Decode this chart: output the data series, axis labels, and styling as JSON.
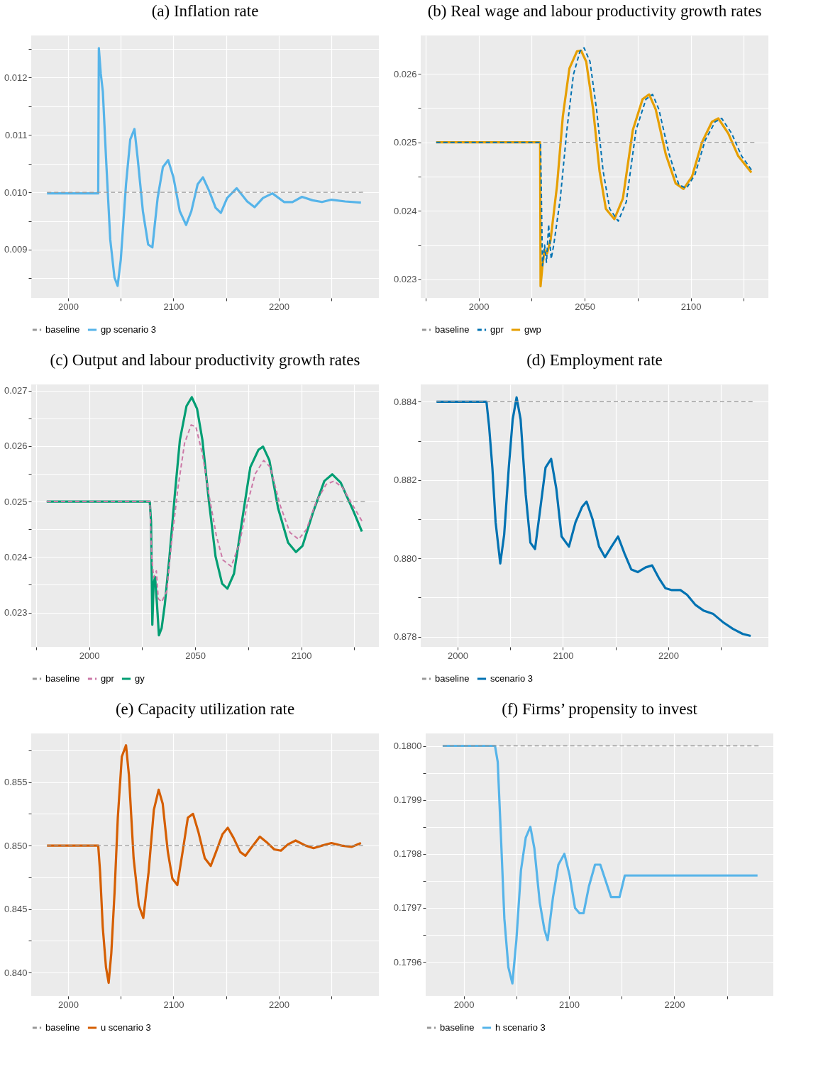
{
  "chart_data": [
    {
      "type": "line",
      "title": "(a) Inflation rate",
      "xlim": [
        1965,
        2295
      ],
      "ylim": [
        0.00816,
        0.01273
      ],
      "xticks": [
        2000,
        {
          "value": 2050,
          "label": null
        },
        2100,
        {
          "value": 2150,
          "label": null
        },
        2200,
        {
          "value": 2250,
          "label": null
        }
      ],
      "yticks": [
        {
          "value": 0.0085,
          "label": null
        },
        0.009,
        {
          "value": 0.0095,
          "label": null
        },
        {
          "value": 0.01,
          "label": "0.010"
        },
        {
          "value": 0.0105,
          "label": null
        },
        0.011,
        {
          "value": 0.0115,
          "label": null
        },
        0.012,
        {
          "value": 0.0125,
          "label": null
        }
      ],
      "grid": true,
      "legend": "bottom",
      "series": [
        {
          "name": "baseline",
          "color": "#999999",
          "line_style": "dashed",
          "x": [
            1980,
            2280
          ],
          "values": [
            0.01,
            0.01
          ]
        },
        {
          "name": "gp scenario 3",
          "color": "#56b4e9",
          "line_style": "solid",
          "x": [
            1980,
            2028.6,
            2029.2,
            2031,
            2033,
            2036,
            2040,
            2044,
            2047,
            2050,
            2055,
            2059,
            2063,
            2066,
            2071,
            2076,
            2080,
            2085,
            2090,
            2095,
            2100,
            2106,
            2112,
            2117,
            2123,
            2128,
            2134,
            2140,
            2145,
            2151,
            2160,
            2170,
            2177,
            2185,
            2194,
            2205,
            2213,
            2222,
            2232,
            2241,
            2250,
            2263,
            2278
          ],
          "values": [
            0.00998,
            0.00998,
            0.01251,
            0.01207,
            0.01175,
            0.0106,
            0.00918,
            0.00852,
            0.00837,
            0.00882,
            0.01014,
            0.01092,
            0.0111,
            0.0106,
            0.00967,
            0.00909,
            0.00904,
            0.0099,
            0.01044,
            0.01056,
            0.01026,
            0.00967,
            0.00943,
            0.00967,
            0.01014,
            0.01026,
            0.01002,
            0.00973,
            0.00964,
            0.0099,
            0.01007,
            0.00984,
            0.00974,
            0.0099,
            0.00998,
            0.00983,
            0.00983,
            0.00992,
            0.00986,
            0.00983,
            0.00987,
            0.00984,
            0.00982
          ]
        }
      ]
    },
    {
      "type": "line",
      "title": "(b) Real wage and labour productivity growth rates",
      "xlim": [
        1972.7,
        2136.6
      ],
      "ylim": [
        0.02273,
        0.02656
      ],
      "xticks": [
        {
          "value": 1975,
          "label": null
        },
        2000,
        {
          "value": 2025,
          "label": null
        },
        2050,
        {
          "value": 2075,
          "label": null
        },
        2100,
        {
          "value": 2125,
          "label": null
        }
      ],
      "yticks": [
        0.023,
        {
          "value": 0.0235,
          "label": null
        },
        0.024,
        {
          "value": 0.0245,
          "label": null
        },
        0.025,
        {
          "value": 0.0255,
          "label": null
        },
        0.026
      ],
      "grid": true,
      "legend": "bottom",
      "series": [
        {
          "name": "baseline",
          "color": "#999999",
          "line_style": "dashed",
          "x": [
            1980,
            2130
          ],
          "values": [
            0.025,
            0.025
          ]
        },
        {
          "name": "gpr",
          "color": "#0072b2",
          "line_style": "dashed",
          "x": [
            1980,
            2029.2,
            2030.1,
            2031.1,
            2032,
            2033,
            2034.2,
            2035.4,
            2038.5,
            2041.6,
            2044.7,
            2047.8,
            2049.7,
            2052.5,
            2055.6,
            2058.7,
            2061.8,
            2065.8,
            2069.6,
            2074.2,
            2078.9,
            2082,
            2085,
            2089.8,
            2094.4,
            2098,
            2102,
            2106.8,
            2111.5,
            2114.6,
            2119.3,
            2124,
            2128.6
          ],
          "values": [
            0.025,
            0.025,
            0.0232,
            0.0235,
            0.02325,
            0.0238,
            0.0233,
            0.0235,
            0.02418,
            0.02518,
            0.02599,
            0.02633,
            0.02638,
            0.02618,
            0.02548,
            0.02458,
            0.02403,
            0.02385,
            0.02413,
            0.02518,
            0.02563,
            0.0257,
            0.02548,
            0.02483,
            0.02438,
            0.02433,
            0.02453,
            0.02503,
            0.0253,
            0.02535,
            0.02513,
            0.0248,
            0.0246
          ]
        },
        {
          "name": "gwp",
          "color": "#e69f00",
          "line_style": "solid",
          "x": [
            1980,
            2029,
            2029.2,
            2030.1,
            2031.1,
            2032.3,
            2033.9,
            2037,
            2039.7,
            2042.8,
            2046.4,
            2048.3,
            2050.7,
            2054,
            2057,
            2060,
            2064,
            2068,
            2072.7,
            2077.3,
            2080.4,
            2083.5,
            2088.2,
            2092.9,
            2096.6,
            2100.6,
            2105.3,
            2110,
            2113,
            2117.7,
            2122.4,
            2128.6
          ],
          "values": [
            0.025,
            0.025,
            0.0229,
            0.0232,
            0.02343,
            0.02338,
            0.02357,
            0.02438,
            0.02538,
            0.02608,
            0.02633,
            0.02634,
            0.02618,
            0.02548,
            0.02458,
            0.02403,
            0.02388,
            0.02418,
            0.02518,
            0.02563,
            0.0257,
            0.02548,
            0.02483,
            0.0244,
            0.02432,
            0.0245,
            0.025,
            0.0253,
            0.02535,
            0.02513,
            0.0248,
            0.02456
          ]
        }
      ]
    },
    {
      "type": "line",
      "title": "(c) Output and labour productivity growth rates",
      "xlim": [
        1972.7,
        2136.6
      ],
      "ylim": [
        0.02238,
        0.02711
      ],
      "xticks": [
        {
          "value": 1975,
          "label": null
        },
        2000,
        {
          "value": 2025,
          "label": null
        },
        2050,
        {
          "value": 2075,
          "label": null
        },
        2100,
        {
          "value": 2125,
          "label": null
        }
      ],
      "yticks": [
        0.023,
        {
          "value": 0.0235,
          "label": null
        },
        0.024,
        {
          "value": 0.0245,
          "label": null
        },
        0.025,
        {
          "value": 0.0255,
          "label": null
        },
        0.026,
        {
          "value": 0.0265,
          "label": null
        },
        0.027
      ],
      "grid": true,
      "legend": "bottom",
      "series": [
        {
          "name": "baseline",
          "color": "#999999",
          "line_style": "dashed",
          "x": [
            1980,
            2130
          ],
          "values": [
            0.025,
            0.025
          ]
        },
        {
          "name": "gpr",
          "color": "#cc79a7",
          "line_style": "dashed",
          "x": [
            1980,
            2028.6,
            2029.5,
            2030.4,
            2031.7,
            2032.6,
            2034.2,
            2036.6,
            2038.8,
            2041.9,
            2045,
            2048.1,
            2050.3,
            2053.4,
            2056.5,
            2060,
            2063,
            2067,
            2071,
            2074.5,
            2078.3,
            2082.3,
            2085.4,
            2090,
            2094.7,
            2098.8,
            2102.5,
            2107.1,
            2111.8,
            2115.5,
            2119.5,
            2124.2,
            2128.6
          ],
          "values": [
            0.025,
            0.025,
            0.02401,
            0.02363,
            0.02375,
            0.02325,
            0.02319,
            0.02338,
            0.02425,
            0.02525,
            0.02605,
            0.02638,
            0.02635,
            0.02586,
            0.02512,
            0.02438,
            0.02395,
            0.02383,
            0.02426,
            0.02494,
            0.0255,
            0.02574,
            0.02562,
            0.02494,
            0.02444,
            0.02432,
            0.0245,
            0.025,
            0.02531,
            0.02537,
            0.02525,
            0.02494,
            0.02465
          ]
        },
        {
          "name": "gy",
          "color": "#009e73",
          "line_style": "solid",
          "x": [
            1980,
            2028.6,
            2029.2,
            2029.8,
            2030.4,
            2031.1,
            2032,
            2032.9,
            2034.2,
            2035.7,
            2037.9,
            2040.4,
            2042.8,
            2045.9,
            2048.4,
            2050.9,
            2053.4,
            2056.5,
            2059.6,
            2062.7,
            2065.2,
            2068.3,
            2072,
            2076,
            2079.8,
            2082,
            2085,
            2089.1,
            2093.8,
            2097.5,
            2100.6,
            2105.6,
            2110.9,
            2114.6,
            2118.6,
            2124.8,
            2128.6
          ],
          "values": [
            0.025,
            0.025,
            0.02463,
            0.02278,
            0.02352,
            0.02364,
            0.02315,
            0.02259,
            0.02272,
            0.02315,
            0.02401,
            0.02512,
            0.02611,
            0.02672,
            0.02688,
            0.02667,
            0.02611,
            0.025,
            0.02401,
            0.02352,
            0.02343,
            0.0237,
            0.02463,
            0.02562,
            0.02593,
            0.02599,
            0.02574,
            0.02488,
            0.02426,
            0.02409,
            0.0242,
            0.02481,
            0.02537,
            0.02549,
            0.02534,
            0.02481,
            0.02446
          ]
        }
      ]
    },
    {
      "type": "line",
      "title": "(d) Employment rate",
      "xlim": [
        1965,
        2295
      ],
      "ylim": [
        0.87774,
        0.88444
      ],
      "xticks": [
        2000,
        {
          "value": 2050,
          "label": null
        },
        2100,
        {
          "value": 2150,
          "label": null
        },
        2200,
        {
          "value": 2250,
          "label": null
        }
      ],
      "yticks": [
        0.878,
        {
          "value": 0.879,
          "label": null
        },
        {
          "value": 0.88,
          "label": "0.880"
        },
        {
          "value": 0.881,
          "label": null
        },
        0.882,
        {
          "value": 0.883,
          "label": null
        },
        0.884
      ],
      "grid": true,
      "legend": "bottom",
      "series": [
        {
          "name": "baseline",
          "color": "#999999",
          "line_style": "dashed",
          "x": [
            1980,
            2280
          ],
          "values": [
            0.884,
            0.884
          ]
        },
        {
          "name": "scenario 3",
          "color": "#0072b2",
          "line_style": "solid",
          "x": [
            1980,
            2027.4,
            2029.9,
            2033,
            2036.1,
            2040.5,
            2044.2,
            2048.6,
            2052.3,
            2056,
            2059.8,
            2064.7,
            2069.1,
            2073.5,
            2078.5,
            2083.5,
            2088.8,
            2093.7,
            2098.7,
            2105.7,
            2111.9,
            2118.1,
            2122.4,
            2128,
            2134.3,
            2139.9,
            2146.1,
            2152.3,
            2158.5,
            2164.8,
            2171,
            2178.5,
            2184.7,
            2191,
            2197.2,
            2203.4,
            2211.5,
            2217.8,
            2225.9,
            2233.3,
            2242.7,
            2252,
            2261.4,
            2270.7,
            2278.2
          ],
          "values": [
            0.884,
            0.884,
            0.88337,
            0.88232,
            0.88092,
            0.87987,
            0.8806,
            0.88232,
            0.88355,
            0.88411,
            0.88355,
            0.88162,
            0.8804,
            0.88024,
            0.88127,
            0.88232,
            0.88254,
            0.88178,
            0.88056,
            0.8803,
            0.88092,
            0.88131,
            0.88145,
            0.88101,
            0.8803,
            0.88003,
            0.8803,
            0.88056,
            0.88012,
            0.87972,
            0.87965,
            0.87977,
            0.87982,
            0.8795,
            0.87924,
            0.87919,
            0.87919,
            0.87907,
            0.87881,
            0.87867,
            0.87858,
            0.87837,
            0.8782,
            0.87807,
            0.87802
          ]
        }
      ]
    },
    {
      "type": "line",
      "title": "(e) Capacity utilization rate",
      "xlim": [
        1965,
        2295
      ],
      "ylim": [
        0.83817,
        0.85883
      ],
      "xticks": [
        2000,
        {
          "value": 2050,
          "label": null
        },
        2100,
        {
          "value": 2150,
          "label": null
        },
        2200,
        {
          "value": 2250,
          "label": null
        }
      ],
      "yticks": [
        {
          "value": 0.84,
          "label": "0.840"
        },
        {
          "value": 0.8425,
          "label": null
        },
        0.845,
        {
          "value": 0.8475,
          "label": null
        },
        {
          "value": 0.85,
          "label": "0.850"
        },
        {
          "value": 0.8525,
          "label": null
        },
        0.855,
        {
          "value": 0.8575,
          "label": null
        }
      ],
      "grid": true,
      "legend": "bottom",
      "series": [
        {
          "name": "baseline",
          "color": "#999999",
          "line_style": "dashed",
          "x": [
            1980,
            2280
          ],
          "values": [
            0.85,
            0.85
          ]
        },
        {
          "name": "u scenario 3",
          "color": "#d55e00",
          "line_style": "solid",
          "x": [
            1980,
            2028.6,
            2030.4,
            2032.9,
            2036,
            2038.5,
            2041,
            2044.1,
            2047.2,
            2051,
            2055,
            2057.8,
            2062.2,
            2067.1,
            2071.4,
            2076.4,
            2081.4,
            2086,
            2089.8,
            2094.7,
            2099,
            2103.7,
            2108.7,
            2113.7,
            2118.6,
            2123.6,
            2129.8,
            2135.4,
            2140.4,
            2146.6,
            2151.6,
            2157.1,
            2163.4,
            2168.3,
            2174.5,
            2182,
            2189.4,
            2195.7,
            2202,
            2208.7,
            2216,
            2225.5,
            2233,
            2241,
            2250,
            2259.6,
            2269,
            2278
          ],
          "values": [
            0.85,
            0.85,
            0.8479,
            0.8436,
            0.8404,
            0.8392,
            0.8415,
            0.8463,
            0.8522,
            0.857,
            0.8579,
            0.8555,
            0.849,
            0.8453,
            0.8443,
            0.8479,
            0.8528,
            0.8544,
            0.8533,
            0.8495,
            0.8474,
            0.8469,
            0.8495,
            0.8522,
            0.8525,
            0.8511,
            0.849,
            0.8484,
            0.8495,
            0.8509,
            0.8514,
            0.8506,
            0.8495,
            0.8492,
            0.8499,
            0.8507,
            0.8502,
            0.8497,
            0.8496,
            0.8501,
            0.8504,
            0.85,
            0.8498,
            0.85,
            0.8502,
            0.85,
            0.8499,
            0.8502
          ]
        }
      ]
    },
    {
      "type": "line",
      "title": "(f) Firms’ propensity to invest",
      "xlim": [
        1963.9,
        2294
      ],
      "ylim": [
        0.179537,
        0.180023
      ],
      "xticks": [
        2000,
        {
          "value": 2050,
          "label": null
        },
        2100,
        {
          "value": 2150,
          "label": null
        },
        2200,
        {
          "value": 2250,
          "label": null
        }
      ],
      "yticks": [
        0.1796,
        {
          "value": 0.17965,
          "label": null
        },
        0.1797,
        {
          "value": 0.17975,
          "label": null
        },
        0.1798,
        {
          "value": 0.17985,
          "label": null
        },
        0.1799,
        {
          "value": 0.17995,
          "label": null
        },
        {
          "value": 0.18,
          "label": "0.1800"
        }
      ],
      "grid": true,
      "legend": "bottom",
      "series": [
        {
          "name": "baseline",
          "color": "#999999",
          "line_style": "dashed",
          "x": [
            1980,
            2280
          ],
          "values": [
            0.18,
            0.18
          ]
        },
        {
          "name": "h scenario 3",
          "color": "#56b4e9",
          "line_style": "solid",
          "x": [
            1980,
            2029.7,
            2032.3,
            2035.4,
            2038.6,
            2042.4,
            2046.2,
            2050,
            2054.4,
            2058.9,
            2063.3,
            2067.1,
            2072.2,
            2076.6,
            2079.7,
            2084.8,
            2089.9,
            2095.6,
            2100.6,
            2105.7,
            2110,
            2113.8,
            2118.9,
            2124.7,
            2129.7,
            2134.8,
            2139.9,
            2148,
            2153,
            2279
          ],
          "values": [
            0.18,
            0.18,
            0.17997,
            0.17983,
            0.17968,
            0.17959,
            0.17956,
            0.17964,
            0.17977,
            0.17983,
            0.17985,
            0.17981,
            0.17971,
            0.17966,
            0.17964,
            0.17972,
            0.17978,
            0.1798,
            0.17976,
            0.1797,
            0.17969,
            0.17969,
            0.17974,
            0.17978,
            0.17978,
            0.17975,
            0.17972,
            0.17972,
            0.17976,
            0.17976
          ]
        }
      ]
    }
  ]
}
